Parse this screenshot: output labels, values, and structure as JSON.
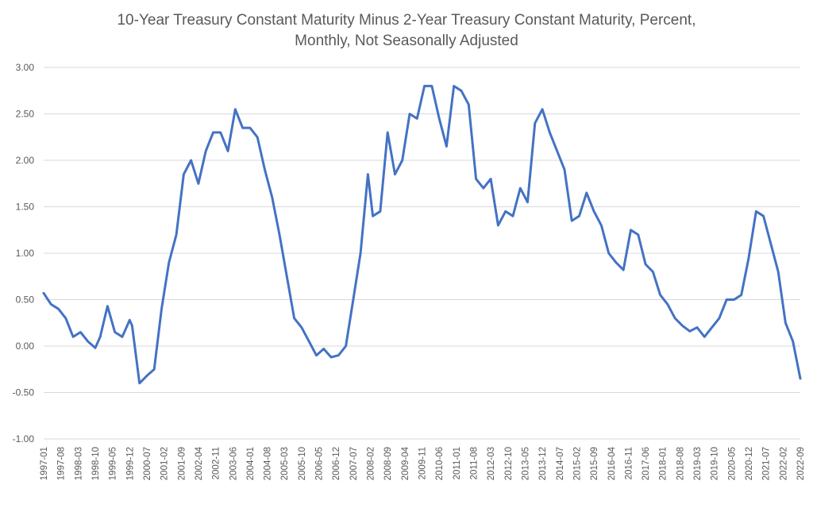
{
  "chart_data": {
    "type": "line",
    "title_lines": [
      "10-Year Treasury Constant Maturity Minus 2-Year Treasury Constant Maturity, Percent,",
      "Monthly, Not Seasonally Adjusted"
    ],
    "xlabel": "",
    "ylabel": "",
    "ylim": [
      -1.0,
      3.0
    ],
    "y_ticks": [
      "3.00",
      "2.50",
      "2.00",
      "1.50",
      "1.00",
      "0.50",
      "0.00",
      "-0.50",
      "-1.00"
    ],
    "y_tick_values": [
      3.0,
      2.5,
      2.0,
      1.5,
      1.0,
      0.5,
      0.0,
      -0.5,
      -1.0
    ],
    "x_start": "1997-01",
    "x_end": "2022-09",
    "x_ticks": [
      "1997-01",
      "1997-08",
      "1998-03",
      "1998-10",
      "1999-05",
      "1999-12",
      "2000-07",
      "2001-02",
      "2001-09",
      "2002-04",
      "2002-11",
      "2003-06",
      "2004-01",
      "2004-08",
      "2005-03",
      "2005-10",
      "2006-05",
      "2006-12",
      "2007-07",
      "2008-02",
      "2008-09",
      "2009-04",
      "2009-11",
      "2010-06",
      "2011-01",
      "2011-08",
      "2012-03",
      "2012-10",
      "2013-05",
      "2013-12",
      "2014-07",
      "2015-02",
      "2015-09",
      "2016-04",
      "2016-11",
      "2017-06",
      "2018-01",
      "2018-08",
      "2019-03",
      "2019-10",
      "2020-05",
      "2020-12",
      "2021-07",
      "2022-02",
      "2022-09"
    ],
    "grid": true,
    "legend": "none",
    "series": [
      {
        "color": "#4472c4",
        "x": [
          "1997-01",
          "1997-04",
          "1997-07",
          "1997-10",
          "1998-01",
          "1998-04",
          "1998-07",
          "1998-10",
          "1998-12",
          "1999-03",
          "1999-06",
          "1999-09",
          "1999-12",
          "2000-01",
          "2000-04",
          "2000-07",
          "2000-10",
          "2001-01",
          "2001-04",
          "2001-07",
          "2001-10",
          "2002-01",
          "2002-04",
          "2002-07",
          "2002-10",
          "2003-01",
          "2003-04",
          "2003-07",
          "2003-10",
          "2004-01",
          "2004-04",
          "2004-07",
          "2004-10",
          "2005-01",
          "2005-04",
          "2005-07",
          "2005-10",
          "2006-01",
          "2006-04",
          "2006-07",
          "2006-10",
          "2007-01",
          "2007-04",
          "2007-07",
          "2007-10",
          "2008-01",
          "2008-03",
          "2008-06",
          "2008-09",
          "2008-12",
          "2009-03",
          "2009-06",
          "2009-09",
          "2009-12",
          "2010-03",
          "2010-06",
          "2010-09",
          "2010-12",
          "2011-03",
          "2011-06",
          "2011-09",
          "2011-12",
          "2012-03",
          "2012-06",
          "2012-09",
          "2012-12",
          "2013-03",
          "2013-06",
          "2013-09",
          "2013-12",
          "2014-03",
          "2014-06",
          "2014-09",
          "2014-12",
          "2015-03",
          "2015-06",
          "2015-09",
          "2015-12",
          "2016-03",
          "2016-06",
          "2016-09",
          "2016-12",
          "2017-03",
          "2017-06",
          "2017-09",
          "2017-12",
          "2018-03",
          "2018-06",
          "2018-09",
          "2018-12",
          "2019-03",
          "2019-06",
          "2019-09",
          "2019-12",
          "2020-03",
          "2020-06",
          "2020-09",
          "2020-12",
          "2021-03",
          "2021-06",
          "2021-09",
          "2021-12",
          "2022-03",
          "2022-06",
          "2022-09"
        ],
        "values": [
          0.57,
          0.45,
          0.4,
          0.3,
          0.1,
          0.15,
          0.05,
          -0.02,
          0.1,
          0.43,
          0.15,
          0.1,
          0.28,
          0.22,
          -0.4,
          -0.32,
          -0.25,
          0.4,
          0.9,
          1.2,
          1.85,
          2.0,
          1.75,
          2.1,
          2.3,
          2.3,
          2.1,
          2.55,
          2.35,
          2.35,
          2.25,
          1.9,
          1.6,
          1.2,
          0.75,
          0.3,
          0.2,
          0.05,
          -0.1,
          -0.03,
          -0.12,
          -0.1,
          0.0,
          0.5,
          1.0,
          1.85,
          1.4,
          1.45,
          2.3,
          1.85,
          2.0,
          2.5,
          2.45,
          2.8,
          2.8,
          2.45,
          2.15,
          2.8,
          2.75,
          2.6,
          1.8,
          1.7,
          1.8,
          1.3,
          1.45,
          1.4,
          1.7,
          1.55,
          2.4,
          2.55,
          2.3,
          2.1,
          1.9,
          1.35,
          1.4,
          1.65,
          1.45,
          1.3,
          1.0,
          0.9,
          0.82,
          1.25,
          1.2,
          0.88,
          0.8,
          0.55,
          0.45,
          0.3,
          0.22,
          0.16,
          0.2,
          0.1,
          0.2,
          0.3,
          0.5,
          0.5,
          0.55,
          0.95,
          1.45,
          1.4,
          1.1,
          0.8,
          0.25,
          0.05,
          -0.35
        ]
      }
    ]
  }
}
